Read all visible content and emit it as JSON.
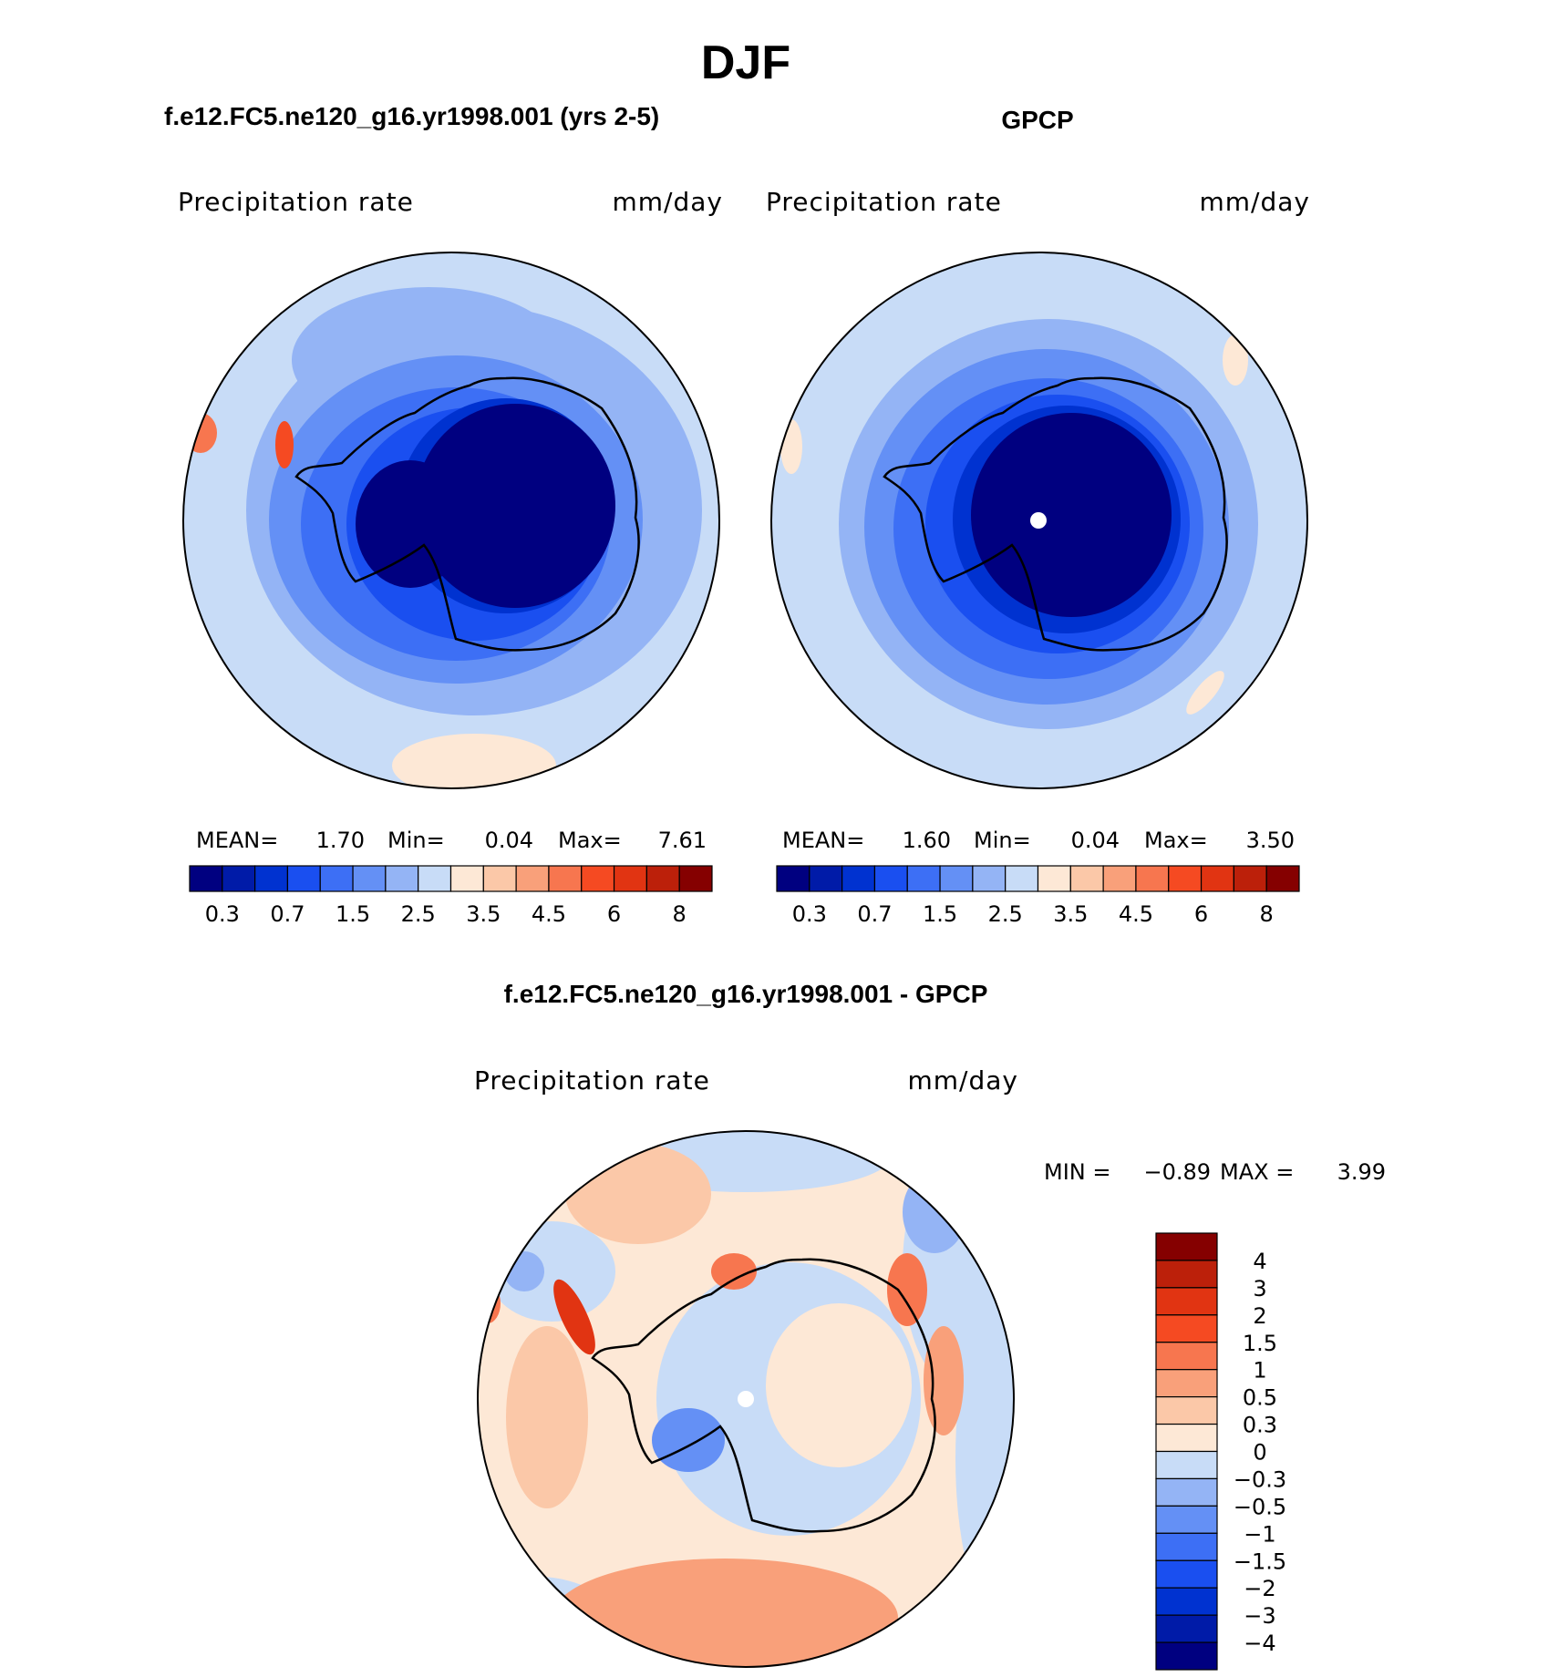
{
  "title": "DJF",
  "panels": {
    "model": {
      "case_title": "f.e12.FC5.ne120_g16.yr1998.001 (yrs 2-5)",
      "field_label": "Precipitation rate",
      "units": "mm/day",
      "stats": {
        "mean_label": "MEAN=",
        "mean": "1.70",
        "min_label": "Min=",
        "min": "0.04",
        "max_label": "Max=",
        "max": "7.61"
      }
    },
    "obs": {
      "case_title": "GPCP",
      "field_label": "Precipitation rate",
      "units": "mm/day",
      "stats": {
        "mean_label": "MEAN=",
        "mean": "1.60",
        "min_label": "Min=",
        "min": "0.04",
        "max_label": "Max=",
        "max": "3.50"
      }
    },
    "diff": {
      "case_title": "f.e12.FC5.ne120_g16.yr1998.001 - GPCP",
      "field_label": "Precipitation rate",
      "units": "mm/day",
      "stats": {
        "min_label": "MIN =",
        "min": "−0.89",
        "max_label": "MAX =",
        "max": "3.99"
      }
    }
  },
  "colorbars": {
    "abs": {
      "colors": [
        "#000080",
        "#001ba8",
        "#0032d0",
        "#1a4ff0",
        "#3d6ff5",
        "#6490f5",
        "#94b4f5",
        "#c8dcf7",
        "#fde8d6",
        "#fbc8a8",
        "#f9a07a",
        "#f7764f",
        "#f54a22",
        "#e13412",
        "#bc200a",
        "#850000"
      ],
      "labels": [
        "0.3",
        "0.7",
        "1.5",
        "2.5",
        "3.5",
        "4.5",
        "6",
        "8"
      ]
    },
    "diff": {
      "colors": [
        "#850000",
        "#bc200a",
        "#e13412",
        "#f54a22",
        "#f7764f",
        "#f9a07a",
        "#fbc8a8",
        "#fde8d6",
        "#c8dcf7",
        "#94b4f5",
        "#6490f5",
        "#3d6ff5",
        "#1a4ff0",
        "#0032d0",
        "#001ba8",
        "#000080"
      ],
      "labels": [
        "4",
        "3",
        "2",
        "1.5",
        "1",
        "0.5",
        "0.3",
        "0",
        "−0.3",
        "−0.5",
        "−1",
        "−1.5",
        "−2",
        "−3",
        "−4"
      ]
    }
  }
}
